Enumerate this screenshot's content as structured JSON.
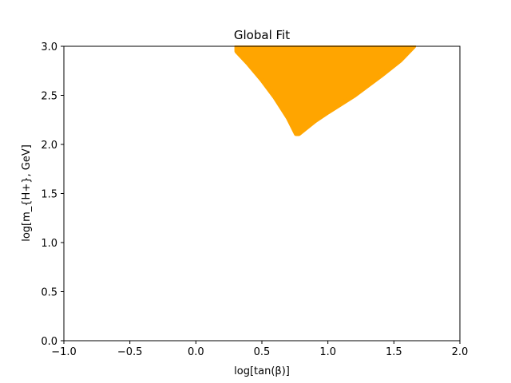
{
  "chart_data": {
    "type": "scatter",
    "title": "Global Fit",
    "xlabel": "log[tan(β)]",
    "ylabel": "log[m_{H+}, GeV]",
    "xlim": [
      -1.0,
      2.0
    ],
    "ylim": [
      0.0,
      3.0
    ],
    "xticks": [
      "−1.0",
      "−0.5",
      "0.0",
      "0.5",
      "1.0",
      "1.5",
      "2.0"
    ],
    "yticks": [
      "0.0",
      "0.5",
      "1.0",
      "1.5",
      "2.0",
      "2.5",
      "3.0"
    ],
    "grid": false,
    "series": [
      {
        "color": "#ffa500",
        "region_boundary": [
          [
            0.31,
            3.0
          ],
          [
            0.31,
            2.95
          ],
          [
            0.4,
            2.82
          ],
          [
            0.5,
            2.66
          ],
          [
            0.6,
            2.48
          ],
          [
            0.7,
            2.27
          ],
          [
            0.76,
            2.11
          ],
          [
            0.78,
            2.11
          ],
          [
            0.9,
            2.24
          ],
          [
            1.0,
            2.33
          ],
          [
            1.2,
            2.5
          ],
          [
            1.4,
            2.7
          ],
          [
            1.55,
            2.86
          ],
          [
            1.65,
            3.0
          ]
        ]
      }
    ]
  }
}
